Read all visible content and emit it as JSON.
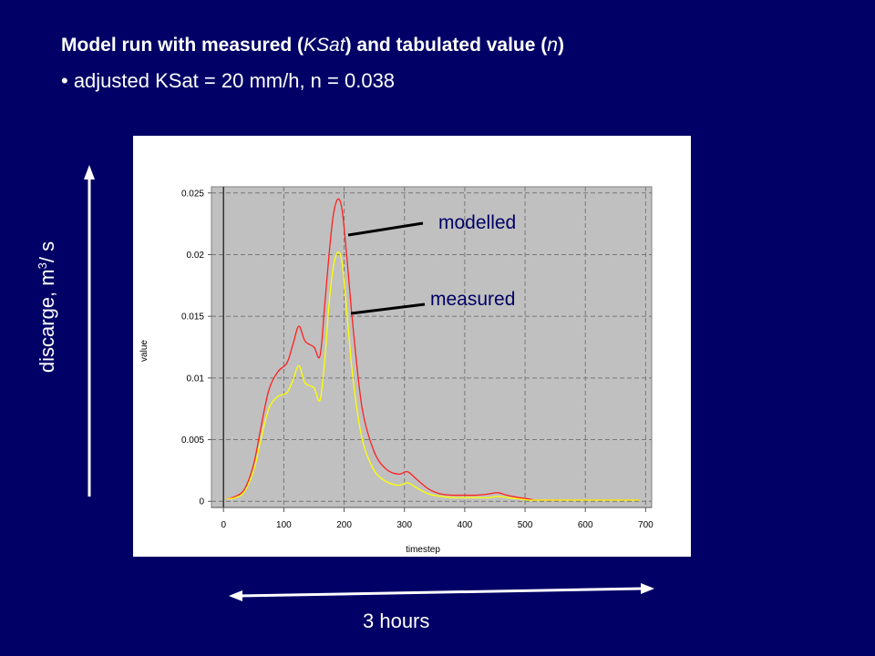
{
  "title": {
    "prefix": "Model run with measured (",
    "ksat": "KSat",
    "middle": ") and tabulated value (",
    "n": "n",
    "suffix": ")"
  },
  "bullet": "• adjusted KSat = 20 mm/h, n = 0.038",
  "outer_labels": {
    "y_prefix": "discarge, m",
    "y_sup": "3",
    "y_suffix": "/ s",
    "x": "3 hours"
  },
  "annotations": {
    "modelled": "modelled",
    "measured": "measured"
  },
  "colors": {
    "background": "#000066",
    "plot_bg": "#c0c0c0",
    "modelled": "#ff2020",
    "measured": "#ffff00"
  },
  "chart_data": {
    "type": "line",
    "title": "",
    "xlabel": "timestep",
    "ylabel": "value",
    "xlim": [
      -20,
      710
    ],
    "ylim": [
      -0.0005,
      0.0255
    ],
    "xticks": [
      0,
      100,
      200,
      300,
      400,
      500,
      600,
      700
    ],
    "xtick_labels": [
      "0",
      "100",
      "200",
      "300",
      "400",
      "500",
      "600",
      "700"
    ],
    "yticks": [
      0,
      0.005,
      0.01,
      0.015,
      0.02,
      0.025
    ],
    "ytick_labels": [
      "0",
      "0.005",
      "0.01",
      "0.015",
      "0.02",
      "0.025"
    ],
    "grid": true,
    "series": [
      {
        "name": "modelled",
        "color": "#ff2020",
        "x": [
          5,
          20,
          35,
          50,
          62,
          75,
          90,
          105,
          115,
          125,
          135,
          150,
          160,
          168,
          175,
          182,
          190,
          197,
          205,
          215,
          230,
          250,
          270,
          290,
          305,
          320,
          340,
          360,
          380,
          400,
          420,
          440,
          455,
          470,
          490,
          505,
          520,
          560,
          600,
          650,
          690
        ],
        "y": [
          0.0002,
          0.0004,
          0.001,
          0.003,
          0.006,
          0.009,
          0.0105,
          0.0112,
          0.0127,
          0.0142,
          0.013,
          0.0125,
          0.0118,
          0.016,
          0.02,
          0.0232,
          0.0245,
          0.0235,
          0.0195,
          0.014,
          0.0075,
          0.004,
          0.0026,
          0.0022,
          0.0024,
          0.0018,
          0.001,
          0.0006,
          0.0005,
          0.0005,
          0.0005,
          0.0006,
          0.0007,
          0.0005,
          0.0003,
          0.0002,
          0.0001,
          0.0001,
          0.0001,
          0.0001,
          0.0001
        ]
      },
      {
        "name": "measured",
        "color": "#ffff00",
        "x": [
          5,
          20,
          35,
          50,
          62,
          75,
          90,
          105,
          115,
          125,
          135,
          150,
          160,
          168,
          175,
          182,
          190,
          197,
          205,
          215,
          230,
          250,
          270,
          290,
          305,
          320,
          340,
          360,
          380,
          400,
          420,
          440,
          455,
          470,
          490,
          505,
          520,
          560,
          600,
          650,
          690
        ],
        "y": [
          0.0002,
          0.0003,
          0.0008,
          0.0025,
          0.005,
          0.0075,
          0.0085,
          0.0088,
          0.0098,
          0.011,
          0.0096,
          0.0092,
          0.0082,
          0.0115,
          0.016,
          0.019,
          0.0202,
          0.0192,
          0.015,
          0.0098,
          0.005,
          0.0025,
          0.0016,
          0.0013,
          0.0015,
          0.0011,
          0.0006,
          0.0004,
          0.0003,
          0.0003,
          0.0003,
          0.0003,
          0.0004,
          0.0003,
          0.0002,
          0.0001,
          0.0001,
          0.0001,
          0.0001,
          0.0001,
          0.0001
        ]
      }
    ]
  }
}
